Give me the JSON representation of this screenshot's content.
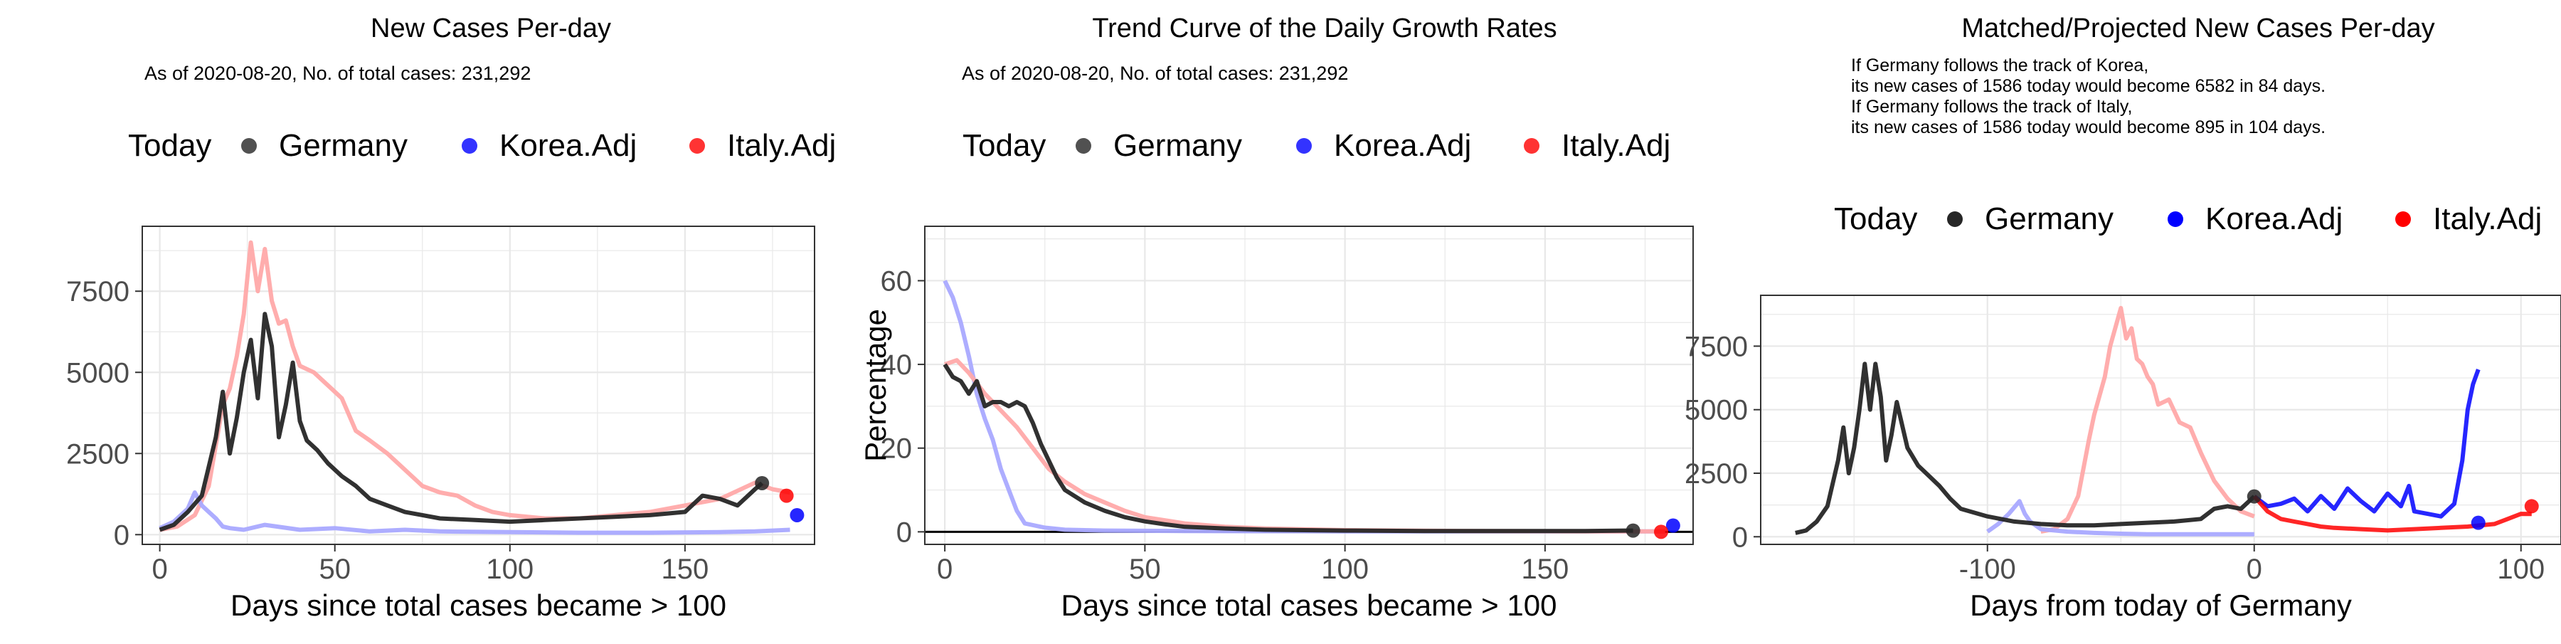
{
  "colors": {
    "germany": "#262626",
    "korea": "#0000FF",
    "italy": "#FF0000",
    "korea_adj_line": "#a9a9ff",
    "italy_adj_line": "#ffa9a9",
    "grid": "#e8e8e8",
    "axis": "#333333"
  },
  "chart_data": [
    {
      "type": "line",
      "title": "New Cases Per-day",
      "subtitle": "As of 2020-08-20, No. of total cases: 231,292",
      "xlabel": "Days since total cases became > 100",
      "ylabel": "",
      "xlim": [
        -5,
        187
      ],
      "ylim": [
        -300,
        9500
      ],
      "xticks": [
        0,
        50,
        100,
        150
      ],
      "yticks": [
        0,
        2500,
        5000,
        7500
      ],
      "grid": true,
      "legend": {
        "position": "top",
        "title": "Today",
        "entries": [
          "Germany",
          "Korea.Adj",
          "Italy.Adj"
        ]
      },
      "series": [
        {
          "name": "Italy.Adj",
          "color_key": "italy_adj_line",
          "x": [
            0,
            5,
            10,
            14,
            18,
            20,
            22,
            24,
            26,
            28,
            30,
            32,
            34,
            36,
            38,
            40,
            44,
            48,
            52,
            56,
            60,
            65,
            70,
            75,
            80,
            85,
            90,
            95,
            100,
            110,
            120,
            130,
            140,
            150,
            160,
            170,
            175,
            180
          ],
          "y": [
            150,
            250,
            600,
            1500,
            4000,
            4500,
            5500,
            6800,
            9000,
            7500,
            8800,
            7200,
            6500,
            6600,
            5800,
            5200,
            5000,
            4600,
            4200,
            3200,
            2900,
            2500,
            2000,
            1500,
            1300,
            1200,
            900,
            700,
            600,
            500,
            500,
            600,
            700,
            900,
            1100,
            1600,
            1400,
            1300
          ]
        },
        {
          "name": "Korea.Adj",
          "color_key": "korea_adj_line",
          "x": [
            0,
            4,
            8,
            10,
            12,
            14,
            16,
            18,
            20,
            24,
            30,
            40,
            50,
            60,
            70,
            80,
            100,
            120,
            140,
            160,
            170,
            180
          ],
          "y": [
            200,
            400,
            800,
            1300,
            900,
            700,
            500,
            250,
            200,
            150,
            300,
            150,
            200,
            100,
            150,
            100,
            80,
            60,
            60,
            80,
            100,
            150
          ]
        },
        {
          "name": "Germany",
          "color_key": "germany",
          "x": [
            0,
            4,
            8,
            12,
            16,
            18,
            20,
            22,
            24,
            26,
            28,
            30,
            32,
            34,
            36,
            38,
            40,
            42,
            45,
            48,
            52,
            56,
            60,
            65,
            70,
            75,
            80,
            90,
            100,
            110,
            120,
            130,
            140,
            150,
            155,
            160,
            165,
            170,
            172
          ],
          "y": [
            150,
            300,
            700,
            1200,
            3000,
            4400,
            2500,
            3600,
            5000,
            6000,
            4200,
            6800,
            5800,
            3000,
            4000,
            5300,
            3500,
            2900,
            2600,
            2200,
            1800,
            1500,
            1100,
            900,
            700,
            600,
            500,
            450,
            400,
            450,
            500,
            550,
            600,
            700,
            1200,
            1100,
            900,
            1400,
            1586
          ]
        }
      ],
      "today_points": [
        {
          "name": "Germany",
          "x": 172,
          "y": 1586,
          "color_key": "germany"
        },
        {
          "name": "Korea.Adj",
          "x": 182,
          "y": 600,
          "color_key": "korea"
        },
        {
          "name": "Italy.Adj",
          "x": 179,
          "y": 1200,
          "color_key": "italy"
        }
      ]
    },
    {
      "type": "line",
      "title": "Trend Curve of the Daily Growth Rates",
      "subtitle": "As of 2020-08-20, No. of total cases: 231,292",
      "xlabel": "Days since total cases became > 100",
      "ylabel": "Percentage",
      "xlim": [
        -5,
        187
      ],
      "ylim": [
        -3,
        73
      ],
      "xticks": [
        0,
        50,
        100,
        150
      ],
      "yticks": [
        0,
        20,
        40,
        60
      ],
      "grid": true,
      "hline": 0,
      "legend": {
        "position": "top",
        "title": "Today",
        "entries": [
          "Germany",
          "Korea.Adj",
          "Italy.Adj"
        ]
      },
      "series": [
        {
          "name": "Korea.Adj",
          "color_key": "korea_adj_line",
          "x": [
            0,
            2,
            4,
            6,
            8,
            10,
            12,
            14,
            16,
            18,
            20,
            25,
            30,
            40,
            60,
            100,
            150,
            180
          ],
          "y": [
            60,
            56,
            50,
            42,
            33,
            27,
            22,
            15,
            10,
            5,
            2,
            1,
            0.5,
            0.3,
            0.2,
            0.1,
            0.1,
            0.1
          ]
        },
        {
          "name": "Italy.Adj",
          "color_key": "italy_adj_line",
          "x": [
            0,
            3,
            6,
            10,
            14,
            18,
            22,
            26,
            30,
            35,
            40,
            45,
            50,
            60,
            70,
            80,
            100,
            130,
            160,
            180
          ],
          "y": [
            40,
            41,
            38,
            33,
            29,
            25,
            20,
            15,
            12,
            9,
            7,
            5,
            3.5,
            2,
            1.2,
            0.8,
            0.4,
            0.2,
            0.1,
            0.1
          ]
        },
        {
          "name": "Germany",
          "color_key": "germany",
          "x": [
            0,
            2,
            4,
            6,
            8,
            10,
            12,
            14,
            16,
            18,
            20,
            22,
            24,
            26,
            28,
            30,
            35,
            40,
            45,
            50,
            55,
            60,
            70,
            80,
            100,
            120,
            140,
            160,
            172
          ],
          "y": [
            40,
            37,
            36,
            33,
            36,
            30,
            31,
            31,
            30,
            31,
            30,
            26,
            21,
            17,
            13,
            10,
            7,
            5,
            3.5,
            2.5,
            1.8,
            1.2,
            0.8,
            0.5,
            0.3,
            0.2,
            0.2,
            0.2,
            0.3
          ]
        }
      ],
      "today_points": [
        {
          "name": "Germany",
          "x": 172,
          "y": 0.3,
          "color_key": "germany"
        },
        {
          "name": "Korea.Adj",
          "x": 182,
          "y": 1.5,
          "color_key": "korea"
        },
        {
          "name": "Italy.Adj",
          "x": 179,
          "y": 0,
          "color_key": "italy"
        }
      ]
    },
    {
      "type": "line",
      "title": "Matched/Projected New Cases Per-day",
      "annotations": [
        "If Germany follows the track of Korea,",
        "its new cases of 1586 today would become 6582 in 84 days.",
        "If Germany follows the track of Italy,",
        "its new cases of 1586 today would become 895 in 104 days."
      ],
      "xlabel": "Days from today of Germany",
      "ylabel": "",
      "xlim": [
        -185,
        115
      ],
      "ylim": [
        -300,
        9500
      ],
      "xticks": [
        -100,
        0,
        100
      ],
      "yticks": [
        0,
        2500,
        5000,
        7500
      ],
      "grid": true,
      "legend": {
        "position": "top",
        "title": "Today",
        "entries": [
          "Germany",
          "Korea.Adj",
          "Italy.Adj"
        ]
      },
      "series": [
        {
          "name": "Italy.Adj",
          "color_key": "italy_adj_line",
          "x": [
            -80,
            -75,
            -70,
            -66,
            -62,
            -60,
            -56,
            -54,
            -50,
            -48,
            -46,
            -44,
            -42,
            -40,
            -38,
            -36,
            -32,
            -28,
            -24,
            -20,
            -15,
            -10,
            -5,
            0
          ],
          "y": [
            200,
            300,
            700,
            1600,
            3800,
            4800,
            6300,
            7500,
            9000,
            7800,
            8200,
            7000,
            6800,
            6300,
            6000,
            5200,
            5400,
            4500,
            4300,
            3300,
            2200,
            1500,
            1000,
            800
          ]
        },
        {
          "name": "Korea.Adj",
          "color_key": "korea_adj_line",
          "x": [
            -100,
            -96,
            -92,
            -88,
            -86,
            -84,
            -80,
            -70,
            -60,
            -50,
            -40,
            -30,
            -20,
            -10,
            0
          ],
          "y": [
            200,
            500,
            900,
            1400,
            900,
            600,
            300,
            200,
            150,
            120,
            100,
            100,
            100,
            100,
            100
          ]
        },
        {
          "name": "Germany",
          "color_key": "germany",
          "x": [
            -172,
            -168,
            -164,
            -160,
            -156,
            -154,
            -152,
            -150,
            -148,
            -146,
            -144,
            -142,
            -140,
            -138,
            -136,
            -134,
            -130,
            -126,
            -122,
            -118,
            -114,
            -110,
            -100,
            -90,
            -80,
            -70,
            -60,
            -50,
            -40,
            -30,
            -20,
            -15,
            -10,
            -5,
            0
          ],
          "y": [
            150,
            250,
            600,
            1200,
            3000,
            4300,
            2500,
            3500,
            5000,
            6800,
            5000,
            6800,
            5500,
            3000,
            4000,
            5300,
            3500,
            2800,
            2400,
            2000,
            1500,
            1100,
            800,
            600,
            500,
            450,
            450,
            500,
            550,
            600,
            700,
            1100,
            1200,
            1100,
            1586
          ]
        },
        {
          "name": "Korea projection",
          "color_key": "korea",
          "x": [
            0,
            5,
            10,
            15,
            20,
            25,
            30,
            35,
            40,
            45,
            50,
            55,
            58,
            60,
            65,
            70,
            75,
            78,
            80,
            82,
            84
          ],
          "y": [
            1586,
            1200,
            1300,
            1500,
            1000,
            1600,
            1100,
            1900,
            1400,
            1000,
            1700,
            1200,
            2000,
            1000,
            900,
            800,
            1300,
            3000,
            5000,
            6000,
            6582
          ]
        },
        {
          "name": "Italy projection",
          "color_key": "italy",
          "x": [
            0,
            5,
            10,
            15,
            20,
            25,
            30,
            40,
            50,
            60,
            70,
            80,
            90,
            95,
            100,
            104
          ],
          "y": [
            1586,
            1000,
            700,
            600,
            500,
            400,
            350,
            300,
            250,
            300,
            350,
            400,
            500,
            700,
            900,
            895
          ]
        }
      ],
      "today_points": [
        {
          "name": "Germany",
          "x": 0,
          "y": 1586,
          "color_key": "germany"
        },
        {
          "name": "Korea.Adj",
          "x": 84,
          "y": 550,
          "color_key": "korea"
        },
        {
          "name": "Italy.Adj",
          "x": 104,
          "y": 1200,
          "color_key": "italy"
        }
      ]
    }
  ]
}
